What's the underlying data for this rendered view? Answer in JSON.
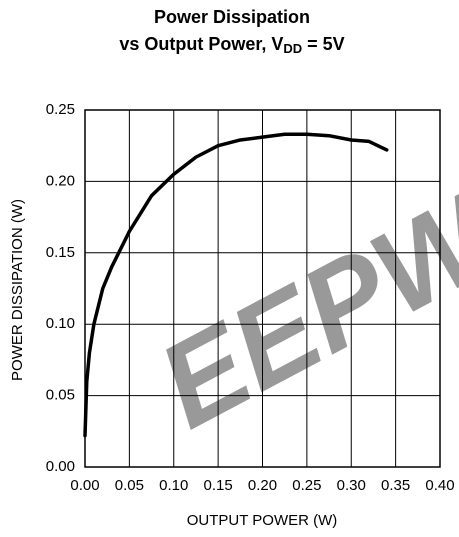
{
  "chart_data": {
    "type": "line",
    "title": {
      "line1": "Power Dissipation",
      "line2": {
        "text": "vs Output Power, V",
        "subscript": "DD",
        "suffix": " = 5V"
      }
    },
    "xlabel": "OUTPUT POWER (W)",
    "ylabel": "POWER DISSIPATION (W)",
    "watermark": "EEPW",
    "x": [
      0.0,
      0.002,
      0.005,
      0.01,
      0.02,
      0.03,
      0.05,
      0.075,
      0.1,
      0.125,
      0.15,
      0.175,
      0.2,
      0.225,
      0.25,
      0.275,
      0.3,
      0.32,
      0.34
    ],
    "values": [
      0.022,
      0.06,
      0.08,
      0.1,
      0.125,
      0.14,
      0.165,
      0.19,
      0.205,
      0.217,
      0.225,
      0.229,
      0.231,
      0.233,
      0.233,
      0.232,
      0.229,
      0.228,
      0.222
    ],
    "color": "#000000",
    "xlim": [
      0,
      0.4
    ],
    "xticks": [
      {
        "value": 0,
        "label": "0.00"
      },
      {
        "value": 0.05,
        "label": "0.05"
      },
      {
        "value": 0.1,
        "label": "0.10"
      },
      {
        "value": 0.15,
        "label": "0.15"
      },
      {
        "value": 0.2,
        "label": "0.20"
      },
      {
        "value": 0.25,
        "label": "0.25"
      },
      {
        "value": 0.3,
        "label": "0.30"
      },
      {
        "value": 0.35,
        "label": "0.35"
      },
      {
        "value": 0.4,
        "label": "0.40"
      }
    ],
    "ylim": [
      0,
      0.25
    ],
    "yticks": [
      {
        "value": 0,
        "label": "0.00"
      },
      {
        "value": 0.05,
        "label": "0.05"
      },
      {
        "value": 0.1,
        "label": "0.10"
      },
      {
        "value": 0.15,
        "label": "0.15"
      },
      {
        "value": 0.2,
        "label": "0.20"
      },
      {
        "value": 0.25,
        "label": "0.25"
      }
    ],
    "grid": true
  }
}
